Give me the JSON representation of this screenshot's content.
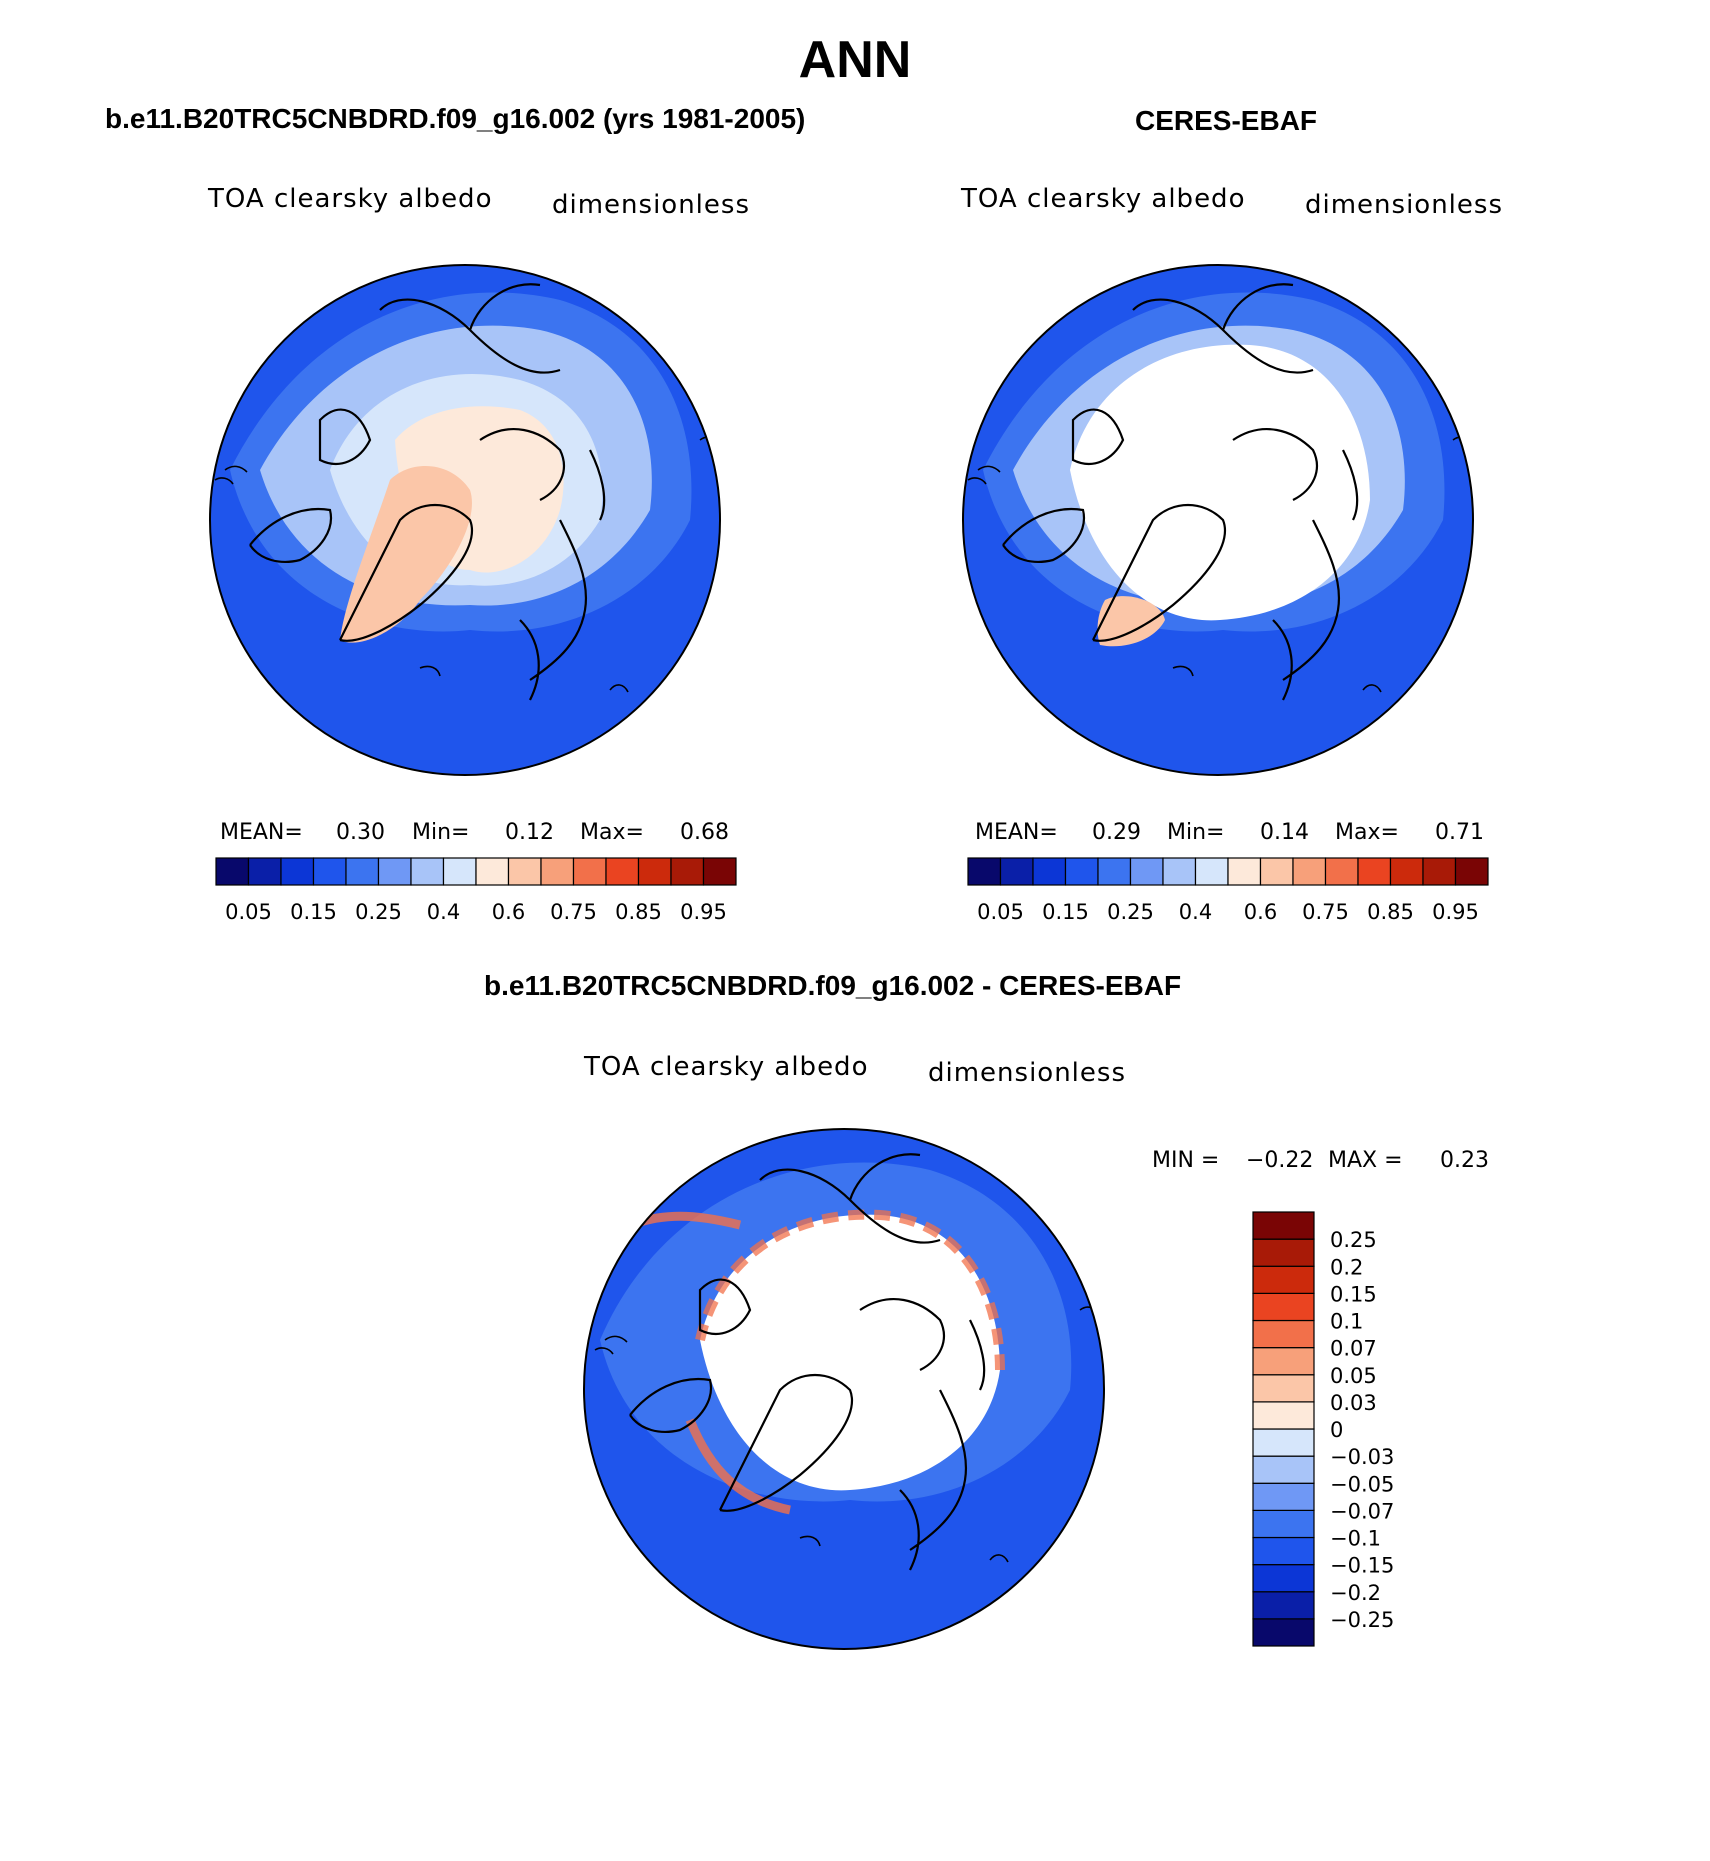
{
  "figure": {
    "season": "ANN"
  },
  "panels": {
    "model": {
      "title": "b.e11.B20TRC5CNBDRD.f09_g16.002 (yrs 1981-2005)",
      "variable": "TOA clearsky albedo",
      "units": "dimensionless",
      "stats": {
        "mean_label": "MEAN=",
        "mean": "0.30",
        "min_label": "Min=",
        "min": "0.12",
        "max_label": "Max=",
        "max": "0.68"
      }
    },
    "obs": {
      "title": "CERES-EBAF",
      "variable": "TOA clearsky albedo",
      "units": "dimensionless",
      "stats": {
        "mean_label": "MEAN=",
        "mean": "0.29",
        "min_label": "Min=",
        "min": "0.14",
        "max_label": "Max=",
        "max": "0.71"
      }
    },
    "diff": {
      "title": "b.e11.B20TRC5CNBDRD.f09_g16.002 - CERES-EBAF",
      "variable": "TOA clearsky albedo",
      "units": "dimensionless",
      "stats": {
        "min_label": "MIN =",
        "min": "−0.22",
        "max_label": "MAX =",
        "max": "0.23"
      }
    }
  },
  "colorbars": {
    "abs": {
      "colors": [
        "#08086b",
        "#0a1fa8",
        "#0c36d6",
        "#1f55ec",
        "#3c74f0",
        "#6f98f5",
        "#a8c4f8",
        "#d6e6fb",
        "#fde9da",
        "#fbc6a8",
        "#f7a07a",
        "#f2704a",
        "#ea4421",
        "#cc2a0c",
        "#a81a07",
        "#7a0505"
      ],
      "tick_labels": [
        "0.05",
        "0.15",
        "0.25",
        "0.4",
        "0.6",
        "0.75",
        "0.85",
        "0.95"
      ],
      "tick_positions": [
        1,
        3,
        5,
        7,
        9,
        11,
        13,
        15
      ]
    },
    "diff": {
      "colors": [
        "#08086b",
        "#0a1fa8",
        "#0c36d6",
        "#1f55ec",
        "#3c74f0",
        "#6f98f5",
        "#a8c4f8",
        "#d6e6fb",
        "#fde9da",
        "#fbc6a8",
        "#f7a07a",
        "#f2704a",
        "#ea4421",
        "#cc2a0c",
        "#a81a07",
        "#7a0505"
      ],
      "tick_labels": [
        "−0.25",
        "−0.2",
        "−0.15",
        "−0.1",
        "−0.07",
        "−0.05",
        "−0.03",
        "0",
        "0.03",
        "0.05",
        "0.07",
        "0.1",
        "0.15",
        "0.2",
        "0.25"
      ]
    }
  },
  "map": {
    "projection": "north-polar-stereographic",
    "colors": {
      "ocean_dark": "#1f55ec",
      "ocean_mid": "#3c74f0",
      "light_blue": "#a8c4f8",
      "pale_blue": "#d6e6fb",
      "ice_model": "#fde9da",
      "greenland": "#fbc6a8",
      "no_data": "#ffffff",
      "diff_warm": "#f2704a"
    }
  }
}
